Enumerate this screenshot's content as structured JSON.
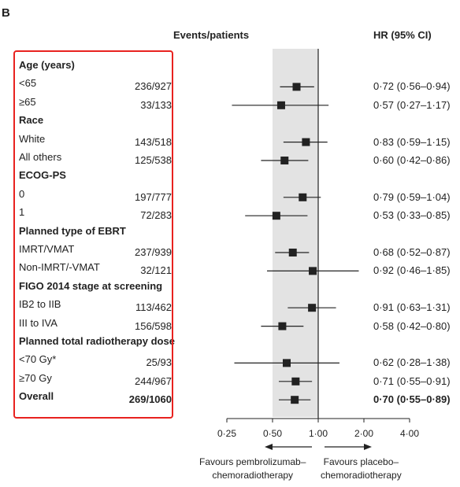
{
  "panel_label": "B",
  "headers": {
    "events": "Events/patients",
    "hr": "HR (95% CI)"
  },
  "chart_data": {
    "type": "forest",
    "x_scale": "log2",
    "xlim": [
      0.25,
      4.0
    ],
    "xticks": [
      "0·25",
      "0·50",
      "1·00",
      "2·00",
      "4·00"
    ],
    "xtick_values": [
      0.25,
      0.5,
      1.0,
      2.0,
      4.0
    ],
    "reference_line": 1.0,
    "shaded_region": [
      0.5,
      1.0
    ],
    "favours_left": [
      "Favours pembrolizumab–",
      "chemoradiotherapy"
    ],
    "favours_right": [
      "Favours placebo–",
      "chemoradiotherapy"
    ],
    "rows": [
      {
        "label": "Age (years)",
        "header": true
      },
      {
        "label": "<65",
        "events": "236/927",
        "hr": 0.72,
        "lo": 0.56,
        "hi": 0.94,
        "hr_text": "0·72 (0·56–0·94)"
      },
      {
        "label": "≥65",
        "events": "33/133",
        "hr": 0.57,
        "lo": 0.27,
        "hi": 1.17,
        "hr_text": "0·57 (0·27–1·17)"
      },
      {
        "label": "Race",
        "header": true
      },
      {
        "label": "White",
        "events": "143/518",
        "hr": 0.83,
        "lo": 0.59,
        "hi": 1.15,
        "hr_text": "0·83 (0·59–1·15)"
      },
      {
        "label": "All others",
        "events": "125/538",
        "hr": 0.6,
        "lo": 0.42,
        "hi": 0.86,
        "hr_text": "0·60 (0·42–0·86)"
      },
      {
        "label": "ECOG-PS",
        "header": true
      },
      {
        "label": "0",
        "events": "197/777",
        "hr": 0.79,
        "lo": 0.59,
        "hi": 1.04,
        "hr_text": "0·79 (0·59–1·04)"
      },
      {
        "label": "1",
        "events": "72/283",
        "hr": 0.53,
        "lo": 0.33,
        "hi": 0.85,
        "hr_text": "0·53 (0·33–0·85)"
      },
      {
        "label": "Planned type of EBRT",
        "header": true
      },
      {
        "label": "IMRT/VMAT",
        "events": "237/939",
        "hr": 0.68,
        "lo": 0.52,
        "hi": 0.87,
        "hr_text": "0·68 (0·52–0·87)"
      },
      {
        "label": "Non-IMRT/-VMAT",
        "events": "32/121",
        "hr": 0.92,
        "lo": 0.46,
        "hi": 1.85,
        "hr_text": "0·92 (0·46–1·85)"
      },
      {
        "label": "FIGO 2014 stage at screening",
        "header": true
      },
      {
        "label": "IB2 to IIB",
        "events": "113/462",
        "hr": 0.91,
        "lo": 0.63,
        "hi": 1.31,
        "hr_text": "0·91 (0·63–1·31)"
      },
      {
        "label": "III to IVA",
        "events": "156/598",
        "hr": 0.58,
        "lo": 0.42,
        "hi": 0.8,
        "hr_text": "0·58 (0·42–0·80)"
      },
      {
        "label": "Planned total radiotherapy dose",
        "header": true
      },
      {
        "label": "<70 Gy*",
        "events": "25/93",
        "hr": 0.62,
        "lo": 0.28,
        "hi": 1.38,
        "hr_text": "0·62 (0·28–1·38)"
      },
      {
        "label": "≥70 Gy",
        "events": "244/967",
        "hr": 0.71,
        "lo": 0.55,
        "hi": 0.91,
        "hr_text": "0·71 (0·55–0·91)"
      },
      {
        "label": "Overall",
        "events": "269/1060",
        "hr": 0.7,
        "lo": 0.55,
        "hi": 0.89,
        "hr_text": "0·70 (0·55–0·89)",
        "overall": true
      }
    ]
  }
}
